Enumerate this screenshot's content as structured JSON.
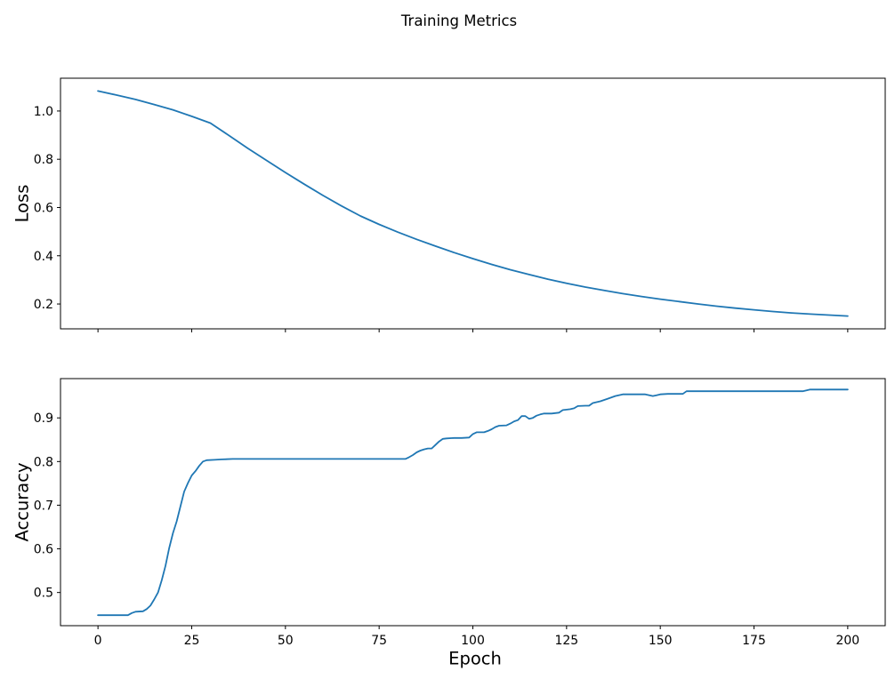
{
  "figure": {
    "title": "Training Metrics",
    "background_color": "#ffffff",
    "text_color": "#000000",
    "spine_color": "#000000"
  },
  "chart_data": [
    {
      "type": "line",
      "name": "loss",
      "title": "",
      "xlabel": "",
      "ylabel": "Loss",
      "legend": "none",
      "grid": false,
      "line_color": "#1f77b4",
      "xlim": [
        -10,
        210
      ],
      "ylim": [
        0.097,
        1.136
      ],
      "xticks": [
        0,
        25,
        50,
        75,
        100,
        125,
        150,
        175,
        200
      ],
      "xtick_labels": [
        "0",
        "25",
        "50",
        "75",
        "100",
        "125",
        "150",
        "175",
        "200"
      ],
      "show_xtick_labels": false,
      "yticks": [
        0.2,
        0.4,
        0.6,
        0.8,
        1.0
      ],
      "ytick_labels": [
        "0.2",
        "0.4",
        "0.6",
        "0.8",
        "1.0"
      ],
      "x": [
        0,
        5,
        10,
        15,
        20,
        25,
        30,
        35,
        40,
        45,
        50,
        55,
        60,
        65,
        70,
        75,
        80,
        85,
        90,
        95,
        100,
        105,
        110,
        115,
        120,
        125,
        130,
        135,
        140,
        145,
        150,
        155,
        160,
        165,
        170,
        175,
        180,
        185,
        190,
        195,
        200
      ],
      "y": [
        1.083,
        1.066,
        1.048,
        1.027,
        1.005,
        0.978,
        0.95,
        0.898,
        0.845,
        0.795,
        0.745,
        0.697,
        0.65,
        0.606,
        0.565,
        0.53,
        0.498,
        0.468,
        0.44,
        0.413,
        0.388,
        0.364,
        0.342,
        0.322,
        0.303,
        0.286,
        0.27,
        0.256,
        0.243,
        0.231,
        0.22,
        0.21,
        0.2,
        0.191,
        0.183,
        0.176,
        0.169,
        0.163,
        0.158,
        0.154,
        0.15
      ]
    },
    {
      "type": "line",
      "name": "accuracy",
      "title": "",
      "xlabel": "Epoch",
      "ylabel": "Accuracy",
      "legend": "none",
      "grid": false,
      "line_color": "#1f77b4",
      "xlim": [
        -10,
        210
      ],
      "ylim": [
        0.424,
        0.99
      ],
      "xticks": [
        0,
        25,
        50,
        75,
        100,
        125,
        150,
        175,
        200
      ],
      "xtick_labels": [
        "0",
        "25",
        "50",
        "75",
        "100",
        "125",
        "150",
        "175",
        "200"
      ],
      "show_xtick_labels": true,
      "yticks": [
        0.5,
        0.6,
        0.7,
        0.8,
        0.9
      ],
      "ytick_labels": [
        "0.5",
        "0.6",
        "0.7",
        "0.8",
        "0.9"
      ],
      "x": [
        0,
        2,
        4,
        6,
        8,
        9,
        10,
        12,
        13,
        14,
        15,
        16,
        17,
        18,
        19,
        20,
        21,
        22,
        23,
        24,
        25,
        26,
        27,
        28,
        29,
        31,
        33,
        36,
        40,
        45,
        50,
        55,
        60,
        65,
        70,
        75,
        80,
        82,
        83,
        84,
        85,
        86,
        87,
        88,
        89,
        90,
        91,
        92,
        93,
        95,
        97,
        99,
        100,
        101,
        103,
        104,
        105,
        106,
        107,
        109,
        110,
        111,
        112,
        113,
        114,
        115,
        116,
        117,
        118,
        119,
        121,
        123,
        124,
        126,
        127,
        128,
        130,
        131,
        132,
        134,
        136,
        138,
        140,
        142,
        144,
        146,
        148,
        149,
        150,
        152,
        154,
        156,
        157,
        159,
        162,
        166,
        170,
        175,
        180,
        185,
        188,
        190,
        193,
        196,
        200
      ],
      "y": [
        0.448,
        0.448,
        0.448,
        0.448,
        0.448,
        0.453,
        0.456,
        0.457,
        0.462,
        0.47,
        0.484,
        0.5,
        0.528,
        0.561,
        0.602,
        0.636,
        0.663,
        0.697,
        0.731,
        0.751,
        0.768,
        0.778,
        0.79,
        0.8,
        0.803,
        0.804,
        0.805,
        0.806,
        0.806,
        0.806,
        0.806,
        0.806,
        0.806,
        0.806,
        0.806,
        0.806,
        0.806,
        0.806,
        0.81,
        0.815,
        0.821,
        0.825,
        0.828,
        0.83,
        0.83,
        0.838,
        0.846,
        0.852,
        0.853,
        0.854,
        0.854,
        0.855,
        0.863,
        0.867,
        0.867,
        0.87,
        0.874,
        0.879,
        0.882,
        0.883,
        0.887,
        0.892,
        0.895,
        0.904,
        0.904,
        0.898,
        0.9,
        0.905,
        0.908,
        0.91,
        0.91,
        0.912,
        0.918,
        0.92,
        0.922,
        0.927,
        0.928,
        0.928,
        0.934,
        0.938,
        0.944,
        0.95,
        0.954,
        0.954,
        0.954,
        0.954,
        0.95,
        0.952,
        0.954,
        0.955,
        0.955,
        0.955,
        0.961,
        0.961,
        0.961,
        0.961,
        0.961,
        0.961,
        0.961,
        0.961,
        0.961,
        0.965,
        0.965,
        0.965,
        0.965
      ]
    }
  ]
}
